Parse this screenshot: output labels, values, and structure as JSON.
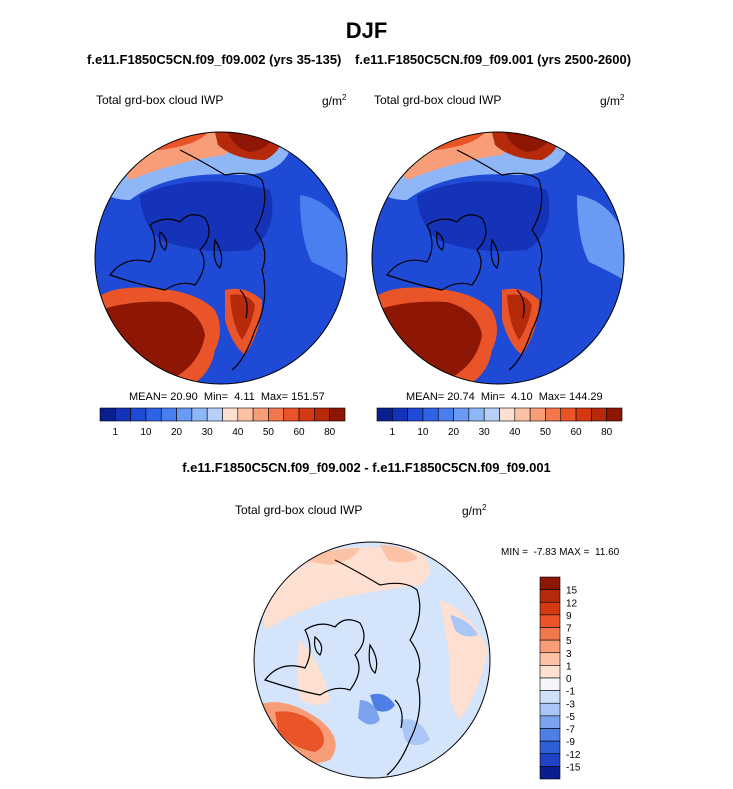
{
  "figure_title": "DJF",
  "panels": [
    {
      "case_title": "f.e11.F1850C5CN.f09_f09.002 (yrs 35-135)",
      "variable": "Total grd-box cloud IWP",
      "units": "g/m",
      "units_exp": "2",
      "stats": {
        "mean": "20.90",
        "min": "4.11",
        "max": "151.57"
      },
      "colorbar_labels": [
        "1",
        "10",
        "20",
        "30",
        "40",
        "50",
        "60",
        "80"
      ]
    },
    {
      "case_title": "f.e11.F1850C5CN.f09_f09.001 (yrs 2500-2600)",
      "variable": "Total grd-box cloud IWP",
      "units": "g/m",
      "units_exp": "2",
      "stats": {
        "mean": "20.74",
        "min": "4.10",
        "max": "144.29"
      },
      "colorbar_labels": [
        "1",
        "10",
        "20",
        "30",
        "40",
        "50",
        "60",
        "80"
      ]
    }
  ],
  "diff_panel": {
    "title": "f.e11.F1850C5CN.f09_f09.002 - f.e11.F1850C5CN.f09_f09.001",
    "variable": "Total grd-box cloud IWP",
    "units": "g/m",
    "units_exp": "2",
    "stats": {
      "min": "-7.83",
      "max": "11.60"
    },
    "colorbar_labels": [
      "15",
      "12",
      "9",
      "7",
      "5",
      "3",
      "1",
      "0",
      "-1",
      "-3",
      "-5",
      "-7",
      "-9",
      "-12",
      "-15"
    ]
  },
  "colors": {
    "abs_scale": [
      "#0a1f8f",
      "#1533b8",
      "#1f4ad6",
      "#2f62e6",
      "#4a7ff0",
      "#6a9af4",
      "#8fb6f7",
      "#b6d0fa",
      "#fde0d2",
      "#fbc2a6",
      "#f79e78",
      "#f2774d",
      "#e95428",
      "#d33a13",
      "#b52a0b",
      "#8e1604"
    ],
    "diff_scale": [
      "#8e1604",
      "#b52a0b",
      "#d33a13",
      "#e95428",
      "#f2774d",
      "#f79e78",
      "#fbc2a6",
      "#fde0d2",
      "#f4f6fb",
      "#cfe0fb",
      "#a9c6f6",
      "#7ba3ee",
      "#4f7fe4",
      "#2e5ed8",
      "#1f43c4",
      "#0a1f8f"
    ],
    "background_blue": "#1f4ad6",
    "diff_background": "#d3e4fb"
  },
  "chart_data": [
    {
      "type": "heatmap",
      "title": "f.e11.F1850C5CN.f09_f09.002 (yrs 35-135)",
      "projection": "north polar stereographic",
      "field": "Total grd-box cloud IWP",
      "units": "g/m2",
      "mean": 20.9,
      "min": 4.11,
      "max": 151.57,
      "colorbar_levels": [
        1,
        5,
        10,
        15,
        20,
        25,
        30,
        35,
        40,
        45,
        50,
        55,
        60,
        70,
        80
      ]
    },
    {
      "type": "heatmap",
      "title": "f.e11.F1850C5CN.f09_f09.001 (yrs 2500-2600)",
      "projection": "north polar stereographic",
      "field": "Total grd-box cloud IWP",
      "units": "g/m2",
      "mean": 20.74,
      "min": 4.1,
      "max": 144.29,
      "colorbar_levels": [
        1,
        5,
        10,
        15,
        20,
        25,
        30,
        35,
        40,
        45,
        50,
        55,
        60,
        70,
        80
      ]
    },
    {
      "type": "heatmap",
      "title": "f.e11.F1850C5CN.f09_f09.002 - f.e11.F1850C5CN.f09_f09.001",
      "projection": "north polar stereographic",
      "field": "Total grd-box cloud IWP difference",
      "units": "g/m2",
      "min": -7.83,
      "max": 11.6,
      "colorbar_levels": [
        -15,
        -12,
        -9,
        -7,
        -5,
        -3,
        -1,
        0,
        1,
        3,
        5,
        7,
        9,
        12,
        15
      ]
    }
  ]
}
